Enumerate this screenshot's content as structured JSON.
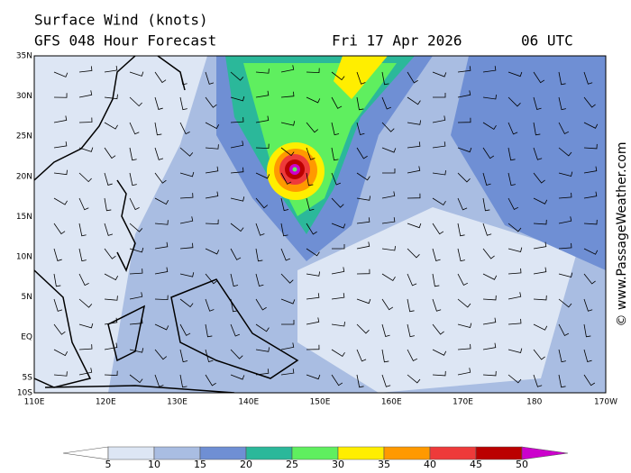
{
  "header": {
    "title": "Surface Wind (knots)",
    "model": "GFS 048 Hour Forecast",
    "date": "Fri 17 Apr 2026",
    "time": "06 UTC"
  },
  "map": {
    "lat_labels": [
      "35N",
      "30N",
      "25N",
      "20N",
      "15N",
      "10N",
      "5N",
      "EQ",
      "5S",
      "10S"
    ],
    "lon_labels": [
      "110E",
      "120E",
      "130E",
      "140E",
      "150E",
      "160E",
      "170E",
      "180",
      "170W"
    ]
  },
  "legend": {
    "ticks": [
      5,
      10,
      15,
      20,
      25,
      30,
      35,
      40,
      45,
      50
    ],
    "colors": [
      "#ffffff",
      "#dde6f4",
      "#a9bde2",
      "#6f8fd4",
      "#2bb89a",
      "#5fef5f",
      "#ffee00",
      "#ff9900",
      "#ee3a3a",
      "#bb0000",
      "#cc00cc"
    ]
  },
  "watermark": "© www.PassageWeather.com"
}
